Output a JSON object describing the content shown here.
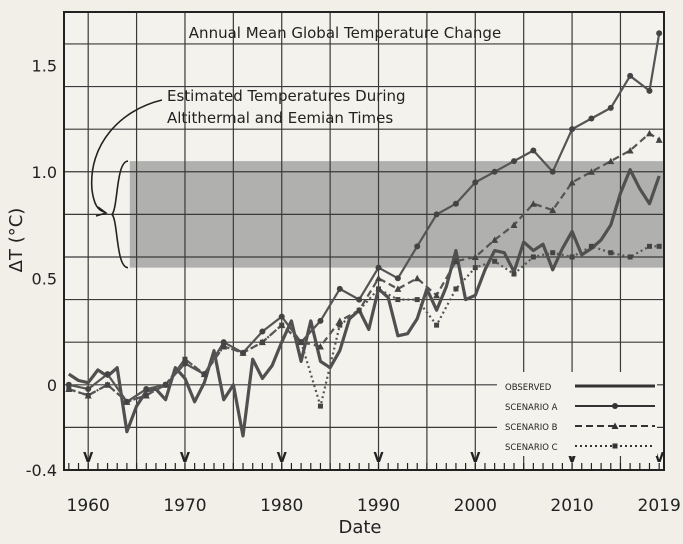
{
  "chart_data": {
    "type": "line",
    "title": "Annual Mean Global Temperature Change",
    "annotation": "Estimated Temperatures During Altithermal and Eemian Times",
    "annotation_lines": [
      "Estimated Temperatures During",
      "Altithermal and Eemian Times"
    ],
    "xlabel": "Date",
    "ylabel": "ΔT (°C)",
    "xlim": [
      1957.5,
      2019.5
    ],
    "ylim": [
      -0.4,
      1.75
    ],
    "x_ticks": [
      {
        "value": 1960,
        "label": "1960"
      },
      {
        "value": 1970,
        "label": "1970"
      },
      {
        "value": 1980,
        "label": "1980"
      },
      {
        "value": 1990,
        "label": "1990"
      },
      {
        "value": 2000,
        "label": "2000"
      },
      {
        "value": 2010,
        "label": "2010"
      },
      {
        "value": 2019,
        "label": "2019"
      }
    ],
    "y_ticks": [
      {
        "value": -0.4,
        "label": "-0.4"
      },
      {
        "value": 0,
        "label": "0"
      },
      {
        "value": 0.5,
        "label": "0.5"
      },
      {
        "value": 1.0,
        "label": "1.0"
      },
      {
        "value": 1.5,
        "label": "1.5"
      }
    ],
    "shaded_band": {
      "y0": 0.55,
      "y1": 1.05,
      "x0": 1964.3,
      "x1": 2019.5,
      "color": "#9a9a9a"
    },
    "series": [
      {
        "name": "OBSERVED",
        "style": "solid",
        "marker": "none",
        "color": "#505050",
        "x": [
          1958,
          1959,
          1960,
          1961,
          1962,
          1963,
          1964,
          1965,
          1966,
          1967,
          1968,
          1969,
          1970,
          1971,
          1972,
          1973,
          1974,
          1975,
          1976,
          1977,
          1978,
          1979,
          1980,
          1981,
          1982,
          1983,
          1984,
          1985,
          1986,
          1987,
          1988,
          1989,
          1990,
          1991,
          1992,
          1993,
          1994,
          1995,
          1996,
          1997,
          1998,
          1999,
          2000,
          2001,
          2002,
          2003,
          2004,
          2005,
          2006,
          2007,
          2008,
          2009,
          2010,
          2011,
          2012,
          2013,
          2014,
          2015,
          2016,
          2017,
          2018,
          2019
        ],
        "y": [
          0.05,
          0.02,
          0.01,
          0.07,
          0.04,
          0.08,
          -0.22,
          -0.1,
          -0.03,
          -0.02,
          -0.07,
          0.08,
          0.03,
          -0.08,
          0.01,
          0.16,
          -0.07,
          0.0,
          -0.24,
          0.12,
          0.03,
          0.09,
          0.2,
          0.3,
          0.11,
          0.3,
          0.11,
          0.08,
          0.16,
          0.31,
          0.35,
          0.26,
          0.45,
          0.41,
          0.23,
          0.24,
          0.31,
          0.45,
          0.35,
          0.46,
          0.63,
          0.4,
          0.42,
          0.54,
          0.63,
          0.62,
          0.53,
          0.67,
          0.63,
          0.66,
          0.54,
          0.64,
          0.72,
          0.61,
          0.64,
          0.68,
          0.75,
          0.9,
          1.01,
          0.92,
          0.85,
          0.98
        ]
      },
      {
        "name": "SCENARIO A",
        "style": "solid",
        "marker": "dot",
        "color": "#555555",
        "x": [
          1958,
          1960,
          1962,
          1964,
          1966,
          1968,
          1970,
          1972,
          1974,
          1976,
          1978,
          1980,
          1982,
          1984,
          1986,
          1988,
          1990,
          1992,
          1994,
          1996,
          1998,
          2000,
          2002,
          2004,
          2006,
          2008,
          2010,
          2012,
          2014,
          2016,
          2018,
          2019
        ],
        "y": [
          0.0,
          -0.02,
          0.05,
          -0.08,
          -0.02,
          0.0,
          0.1,
          0.05,
          0.2,
          0.15,
          0.25,
          0.32,
          0.2,
          0.3,
          0.45,
          0.4,
          0.55,
          0.5,
          0.65,
          0.8,
          0.85,
          0.95,
          1.0,
          1.05,
          1.1,
          1.0,
          1.2,
          1.25,
          1.3,
          1.45,
          1.38,
          1.65
        ]
      },
      {
        "name": "SCENARIO B",
        "style": "dashed",
        "marker": "triangle",
        "color": "#555555",
        "x": [
          1958,
          1960,
          1962,
          1964,
          1966,
          1968,
          1970,
          1972,
          1974,
          1976,
          1978,
          1980,
          1982,
          1984,
          1986,
          1988,
          1990,
          1992,
          1994,
          1996,
          1998,
          2000,
          2002,
          2004,
          2006,
          2008,
          2010,
          2012,
          2014,
          2016,
          2018,
          2019
        ],
        "y": [
          -0.02,
          -0.05,
          0.0,
          -0.08,
          -0.05,
          0.0,
          0.12,
          0.05,
          0.18,
          0.15,
          0.2,
          0.28,
          0.2,
          0.18,
          0.3,
          0.35,
          0.5,
          0.45,
          0.5,
          0.42,
          0.58,
          0.6,
          0.68,
          0.75,
          0.85,
          0.82,
          0.95,
          1.0,
          1.05,
          1.1,
          1.18,
          1.15
        ]
      },
      {
        "name": "SCENARIO C",
        "style": "dotted",
        "marker": "square",
        "color": "#555555",
        "x": [
          1958,
          1960,
          1962,
          1964,
          1966,
          1968,
          1970,
          1972,
          1974,
          1976,
          1978,
          1980,
          1982,
          1984,
          1986,
          1988,
          1990,
          1992,
          1994,
          1996,
          1998,
          2000,
          2002,
          2004,
          2006,
          2008,
          2010,
          2012,
          2014,
          2016,
          2018,
          2019
        ],
        "y": [
          -0.02,
          -0.05,
          0.0,
          -0.08,
          -0.05,
          0.0,
          0.12,
          0.05,
          0.18,
          0.15,
          0.2,
          0.28,
          0.2,
          -0.1,
          0.28,
          0.35,
          0.45,
          0.4,
          0.4,
          0.28,
          0.45,
          0.55,
          0.58,
          0.52,
          0.6,
          0.62,
          0.6,
          0.65,
          0.62,
          0.6,
          0.65,
          0.65
        ]
      }
    ],
    "legend": {
      "position": "bottom-right",
      "entries": [
        "OBSERVED",
        "SCENARIO A",
        "SCENARIO B",
        "SCENARIO C"
      ]
    }
  }
}
